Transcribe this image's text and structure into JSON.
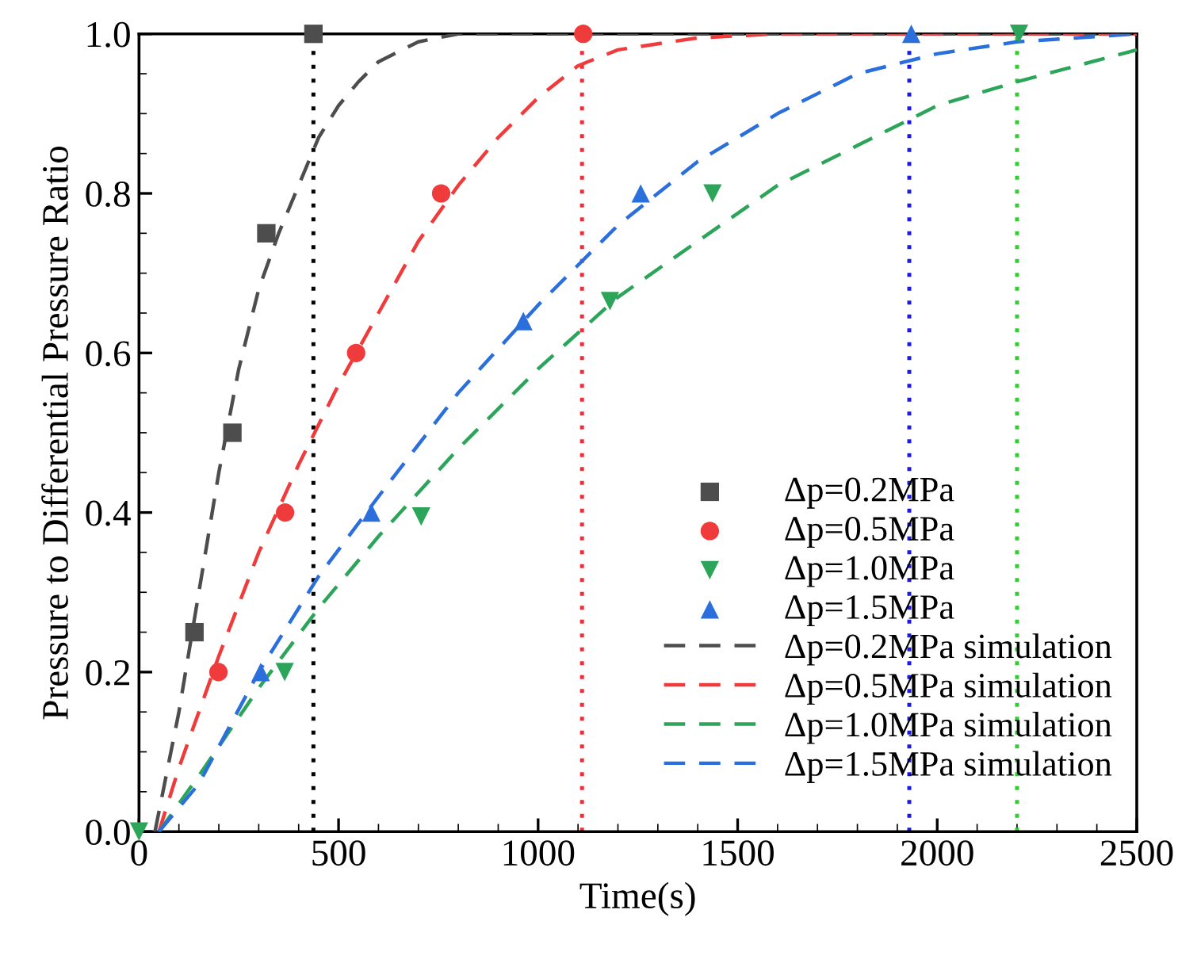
{
  "chart_data": {
    "type": "scatter",
    "xlabel": "Time(s)",
    "ylabel": "Pressure to Differential Pressure Ratio",
    "xlim": [
      0,
      2500
    ],
    "xticks": [
      0,
      500,
      1000,
      1500,
      2000,
      2500
    ],
    "ylim": [
      0,
      1.0
    ],
    "yticks": [
      {
        "value": 0,
        "label": "0.0"
      },
      {
        "value": 0.2,
        "label": "0.2"
      },
      {
        "value": 0.4,
        "label": "0.4"
      },
      {
        "value": 0.6,
        "label": "0.6"
      },
      {
        "value": 0.8,
        "label": "0.8"
      },
      {
        "value": 1.0,
        "label": "1.0"
      }
    ],
    "grid": false,
    "legend": "bottom right",
    "series": [
      {
        "name": "Δp=0.2MPa",
        "marker": "square",
        "color": "#4d4d4d",
        "x": [
          139,
          234,
          319,
          437
        ],
        "values": [
          0.25,
          0.5,
          0.75,
          1.0
        ]
      },
      {
        "name": "Δp=0.5MPa",
        "marker": "circle",
        "color": "#ef3b3b",
        "x": [
          199,
          366,
          544,
          757,
          1113
        ],
        "values": [
          0.2,
          0.4,
          0.6,
          0.8,
          1.0
        ]
      },
      {
        "name": "Δp=1.0MPa",
        "marker": "triangle_down",
        "color": "#2ca55a",
        "x": [
          0,
          365,
          707,
          1180,
          1437,
          2205
        ],
        "values": [
          0,
          0.2,
          0.395,
          0.665,
          0.8,
          1.0
        ]
      },
      {
        "name": "Δp=1.5MPa",
        "marker": "triangle",
        "color": "#2a6fdb",
        "x": [
          305,
          582,
          963,
          1257,
          1935
        ],
        "values": [
          0.2,
          0.4,
          0.64,
          0.8,
          1.0
        ]
      },
      {
        "name": "Δp=0.2MPa simulation",
        "type": "line",
        "line_style": "dashed",
        "color": "#4d4d4d",
        "x": [
          40,
          100,
          150,
          200,
          250,
          300,
          350,
          400,
          450,
          500,
          550,
          600,
          700,
          800,
          2500
        ],
        "values": [
          0,
          0.15,
          0.3,
          0.45,
          0.58,
          0.68,
          0.75,
          0.81,
          0.87,
          0.91,
          0.94,
          0.965,
          0.99,
          1.0,
          1.0
        ]
      },
      {
        "name": "Δp=0.5MPa simulation",
        "type": "line",
        "line_style": "dashed",
        "color": "#ef3b3b",
        "x": [
          50,
          100,
          200,
          300,
          400,
          500,
          600,
          700,
          800,
          900,
          1000,
          1100,
          1200,
          1400,
          1600,
          2500
        ],
        "values": [
          0,
          0.08,
          0.22,
          0.35,
          0.46,
          0.56,
          0.65,
          0.74,
          0.81,
          0.87,
          0.92,
          0.96,
          0.98,
          0.995,
          1.0,
          1.0
        ]
      },
      {
        "name": "Δp=1.0MPa simulation",
        "type": "line",
        "line_style": "dashed",
        "color": "#2ca55a",
        "x": [
          50,
          150,
          300,
          450,
          600,
          800,
          1000,
          1200,
          1400,
          1600,
          1800,
          2000,
          2200,
          2500
        ],
        "values": [
          0,
          0.07,
          0.18,
          0.28,
          0.37,
          0.48,
          0.58,
          0.67,
          0.74,
          0.81,
          0.86,
          0.91,
          0.94,
          0.98
        ]
      },
      {
        "name": "Δp=1.5MPa simulation",
        "type": "line",
        "line_style": "dashed",
        "color": "#2a6fdb",
        "x": [
          50,
          150,
          300,
          450,
          600,
          800,
          1000,
          1200,
          1400,
          1600,
          1800,
          2000,
          2200,
          2500
        ],
        "values": [
          0,
          0.06,
          0.2,
          0.32,
          0.42,
          0.55,
          0.66,
          0.76,
          0.84,
          0.9,
          0.95,
          0.975,
          0.99,
          1.0
        ]
      }
    ],
    "ref_lines": [
      {
        "axis": "x",
        "value": 437,
        "color": "#000000",
        "line_style": "dotted"
      },
      {
        "axis": "x",
        "value": 1110,
        "color": "#e8303a",
        "line_style": "dotted"
      },
      {
        "axis": "x",
        "value": 1930,
        "color": "#1a1ae0",
        "line_style": "dotted"
      },
      {
        "axis": "x",
        "value": 2200,
        "color": "#33cc33",
        "line_style": "dotted"
      }
    ]
  }
}
